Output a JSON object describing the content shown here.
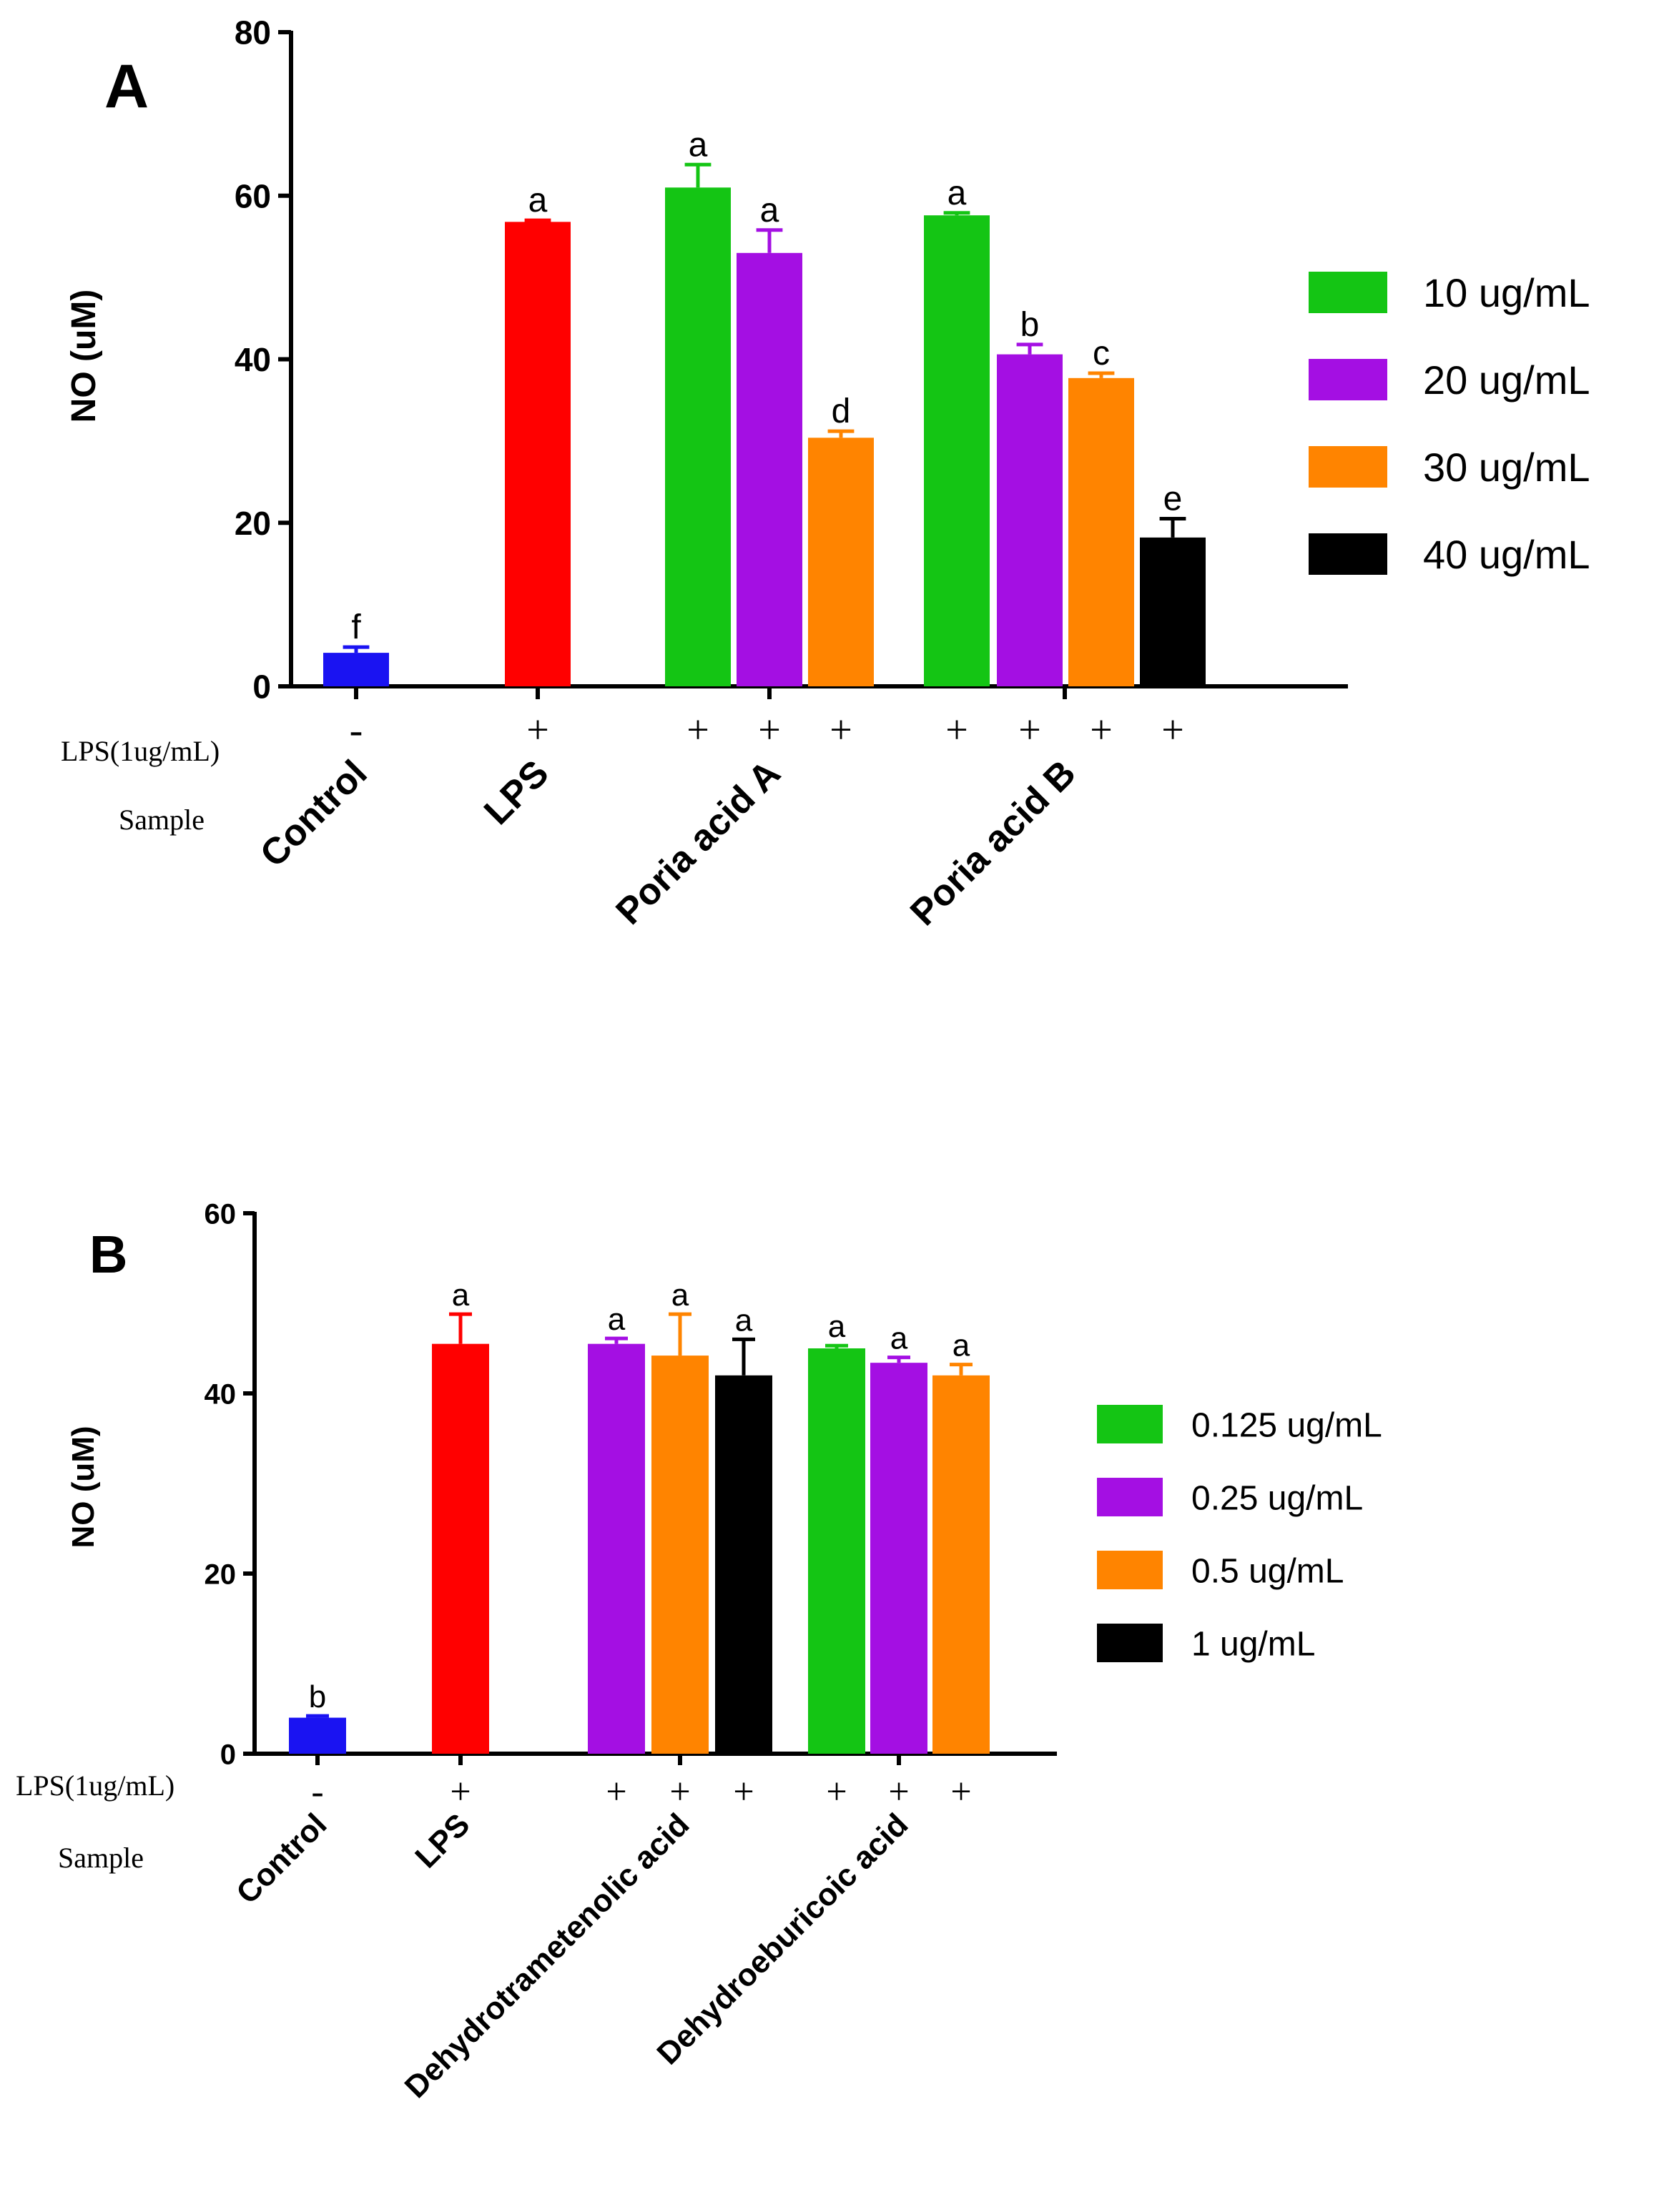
{
  "chart_data": [
    {
      "type": "bar",
      "panel_label": "A",
      "ylabel": "NO (uM)",
      "ylim": [
        0,
        80
      ],
      "yticks": [
        0,
        20,
        40,
        60,
        80
      ],
      "row_labels": {
        "lps": "LPS(1ug/mL)",
        "sample": "Sample"
      },
      "legend_position": "right",
      "legend": [
        {
          "label": "10 ug/mL",
          "color": "#14C514"
        },
        {
          "label": "20 ug/mL",
          "color": "#A40FE3"
        },
        {
          "label": "30 ug/mL",
          "color": "#FF8400"
        },
        {
          "label": "40 ug/mL",
          "color": "#000000"
        }
      ],
      "groups": [
        {
          "name": "Control",
          "bars": [
            {
              "value": 4.1,
              "error": 0.7,
              "color": "#1A13F2",
              "sig": "f"
            }
          ],
          "lps": [
            "-"
          ]
        },
        {
          "name": "LPS",
          "bars": [
            {
              "value": 56.8,
              "error": 0.2,
              "color": "#FF0000",
              "sig": "a"
            }
          ],
          "lps": [
            "+"
          ]
        },
        {
          "name": "Poria acid A",
          "bars": [
            {
              "value": 61.0,
              "error": 2.8,
              "color": "#14C514",
              "sig": "a"
            },
            {
              "value": 53.0,
              "error": 2.8,
              "color": "#A40FE3",
              "sig": "a"
            },
            {
              "value": 30.4,
              "error": 0.8,
              "color": "#FF8400",
              "sig": "d"
            }
          ],
          "lps": [
            "+",
            "+",
            "+"
          ]
        },
        {
          "name": "Poria acid B",
          "bars": [
            {
              "value": 57.6,
              "error": 0.3,
              "color": "#14C514",
              "sig": "a"
            },
            {
              "value": 40.6,
              "error": 1.2,
              "color": "#A40FE3",
              "sig": "b"
            },
            {
              "value": 37.7,
              "error": 0.6,
              "color": "#FF8400",
              "sig": "c"
            },
            {
              "value": 18.2,
              "error": 2.3,
              "color": "#000000",
              "sig": "e"
            }
          ],
          "lps": [
            "+",
            "+",
            "+",
            "+"
          ]
        }
      ]
    },
    {
      "type": "bar",
      "panel_label": "B",
      "ylabel": "NO (uM)",
      "ylim": [
        0,
        60
      ],
      "yticks": [
        0,
        20,
        40,
        60
      ],
      "row_labels": {
        "lps": "LPS(1ug/mL)",
        "sample": "Sample"
      },
      "legend_position": "right",
      "legend": [
        {
          "label": "0.125 ug/mL",
          "color": "#14C514"
        },
        {
          "label": "0.25 ug/mL",
          "color": "#A40FE3"
        },
        {
          "label": "0.5 ug/mL",
          "color": "#FF8400"
        },
        {
          "label": "1 ug/mL",
          "color": "#000000"
        }
      ],
      "groups": [
        {
          "name": "Control",
          "bars": [
            {
              "value": 4.0,
              "error": 0.2,
              "color": "#1A13F2",
              "sig": "b"
            }
          ],
          "lps": [
            "-"
          ]
        },
        {
          "name": "LPS",
          "bars": [
            {
              "value": 45.5,
              "error": 3.3,
              "color": "#FF0000",
              "sig": "a"
            }
          ],
          "lps": [
            "+"
          ]
        },
        {
          "name": "Dehydrotrametenolic acid",
          "bars": [
            {
              "value": 45.5,
              "error": 0.6,
              "color": "#A40FE3",
              "sig": "a"
            },
            {
              "value": 44.2,
              "error": 4.6,
              "color": "#FF8400",
              "sig": "a"
            },
            {
              "value": 42.0,
              "error": 4.0,
              "color": "#000000",
              "sig": "a"
            }
          ],
          "lps": [
            "+",
            "+",
            "+"
          ]
        },
        {
          "name": "Dehydroeburicoic acid",
          "bars": [
            {
              "value": 45.0,
              "error": 0.3,
              "color": "#14C514",
              "sig": "a"
            },
            {
              "value": 43.4,
              "error": 0.6,
              "color": "#A40FE3",
              "sig": "a"
            },
            {
              "value": 42.0,
              "error": 1.2,
              "color": "#FF8400",
              "sig": "a"
            }
          ],
          "lps": [
            "+",
            "+",
            "+"
          ]
        }
      ]
    }
  ]
}
